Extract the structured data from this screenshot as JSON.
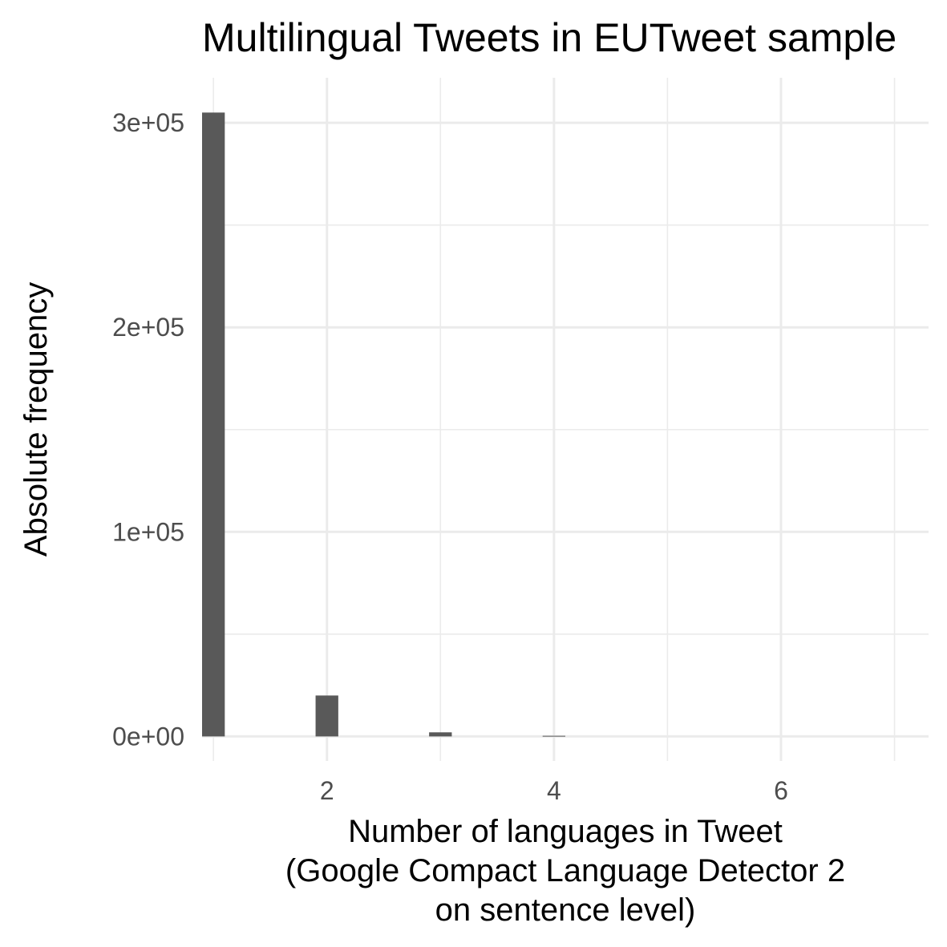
{
  "chart_data": {
    "type": "bar",
    "title": "Multilingual Tweets in EUTweet sample",
    "xlabel": [
      "Number of languages in Tweet",
      "(Google Compact Language Detector 2",
      "on sentence level)"
    ],
    "ylabel": "Absolute frequency",
    "x": [
      1,
      2,
      3,
      4
    ],
    "values": [
      305000,
      20000,
      2000,
      300
    ],
    "xlim": [
      0.9,
      7.3
    ],
    "ylim": [
      -12000,
      322000
    ],
    "x_ticks": [
      2,
      4,
      6
    ],
    "x_tick_labels": [
      "2",
      "4",
      "6"
    ],
    "y_ticks": [
      0,
      100000,
      200000,
      300000
    ],
    "y_tick_labels": [
      "0e+00",
      "1e+05",
      "2e+05",
      "3e+05"
    ],
    "grid": true,
    "bar_color": "#595959",
    "grid_color": "#ebebeb"
  }
}
